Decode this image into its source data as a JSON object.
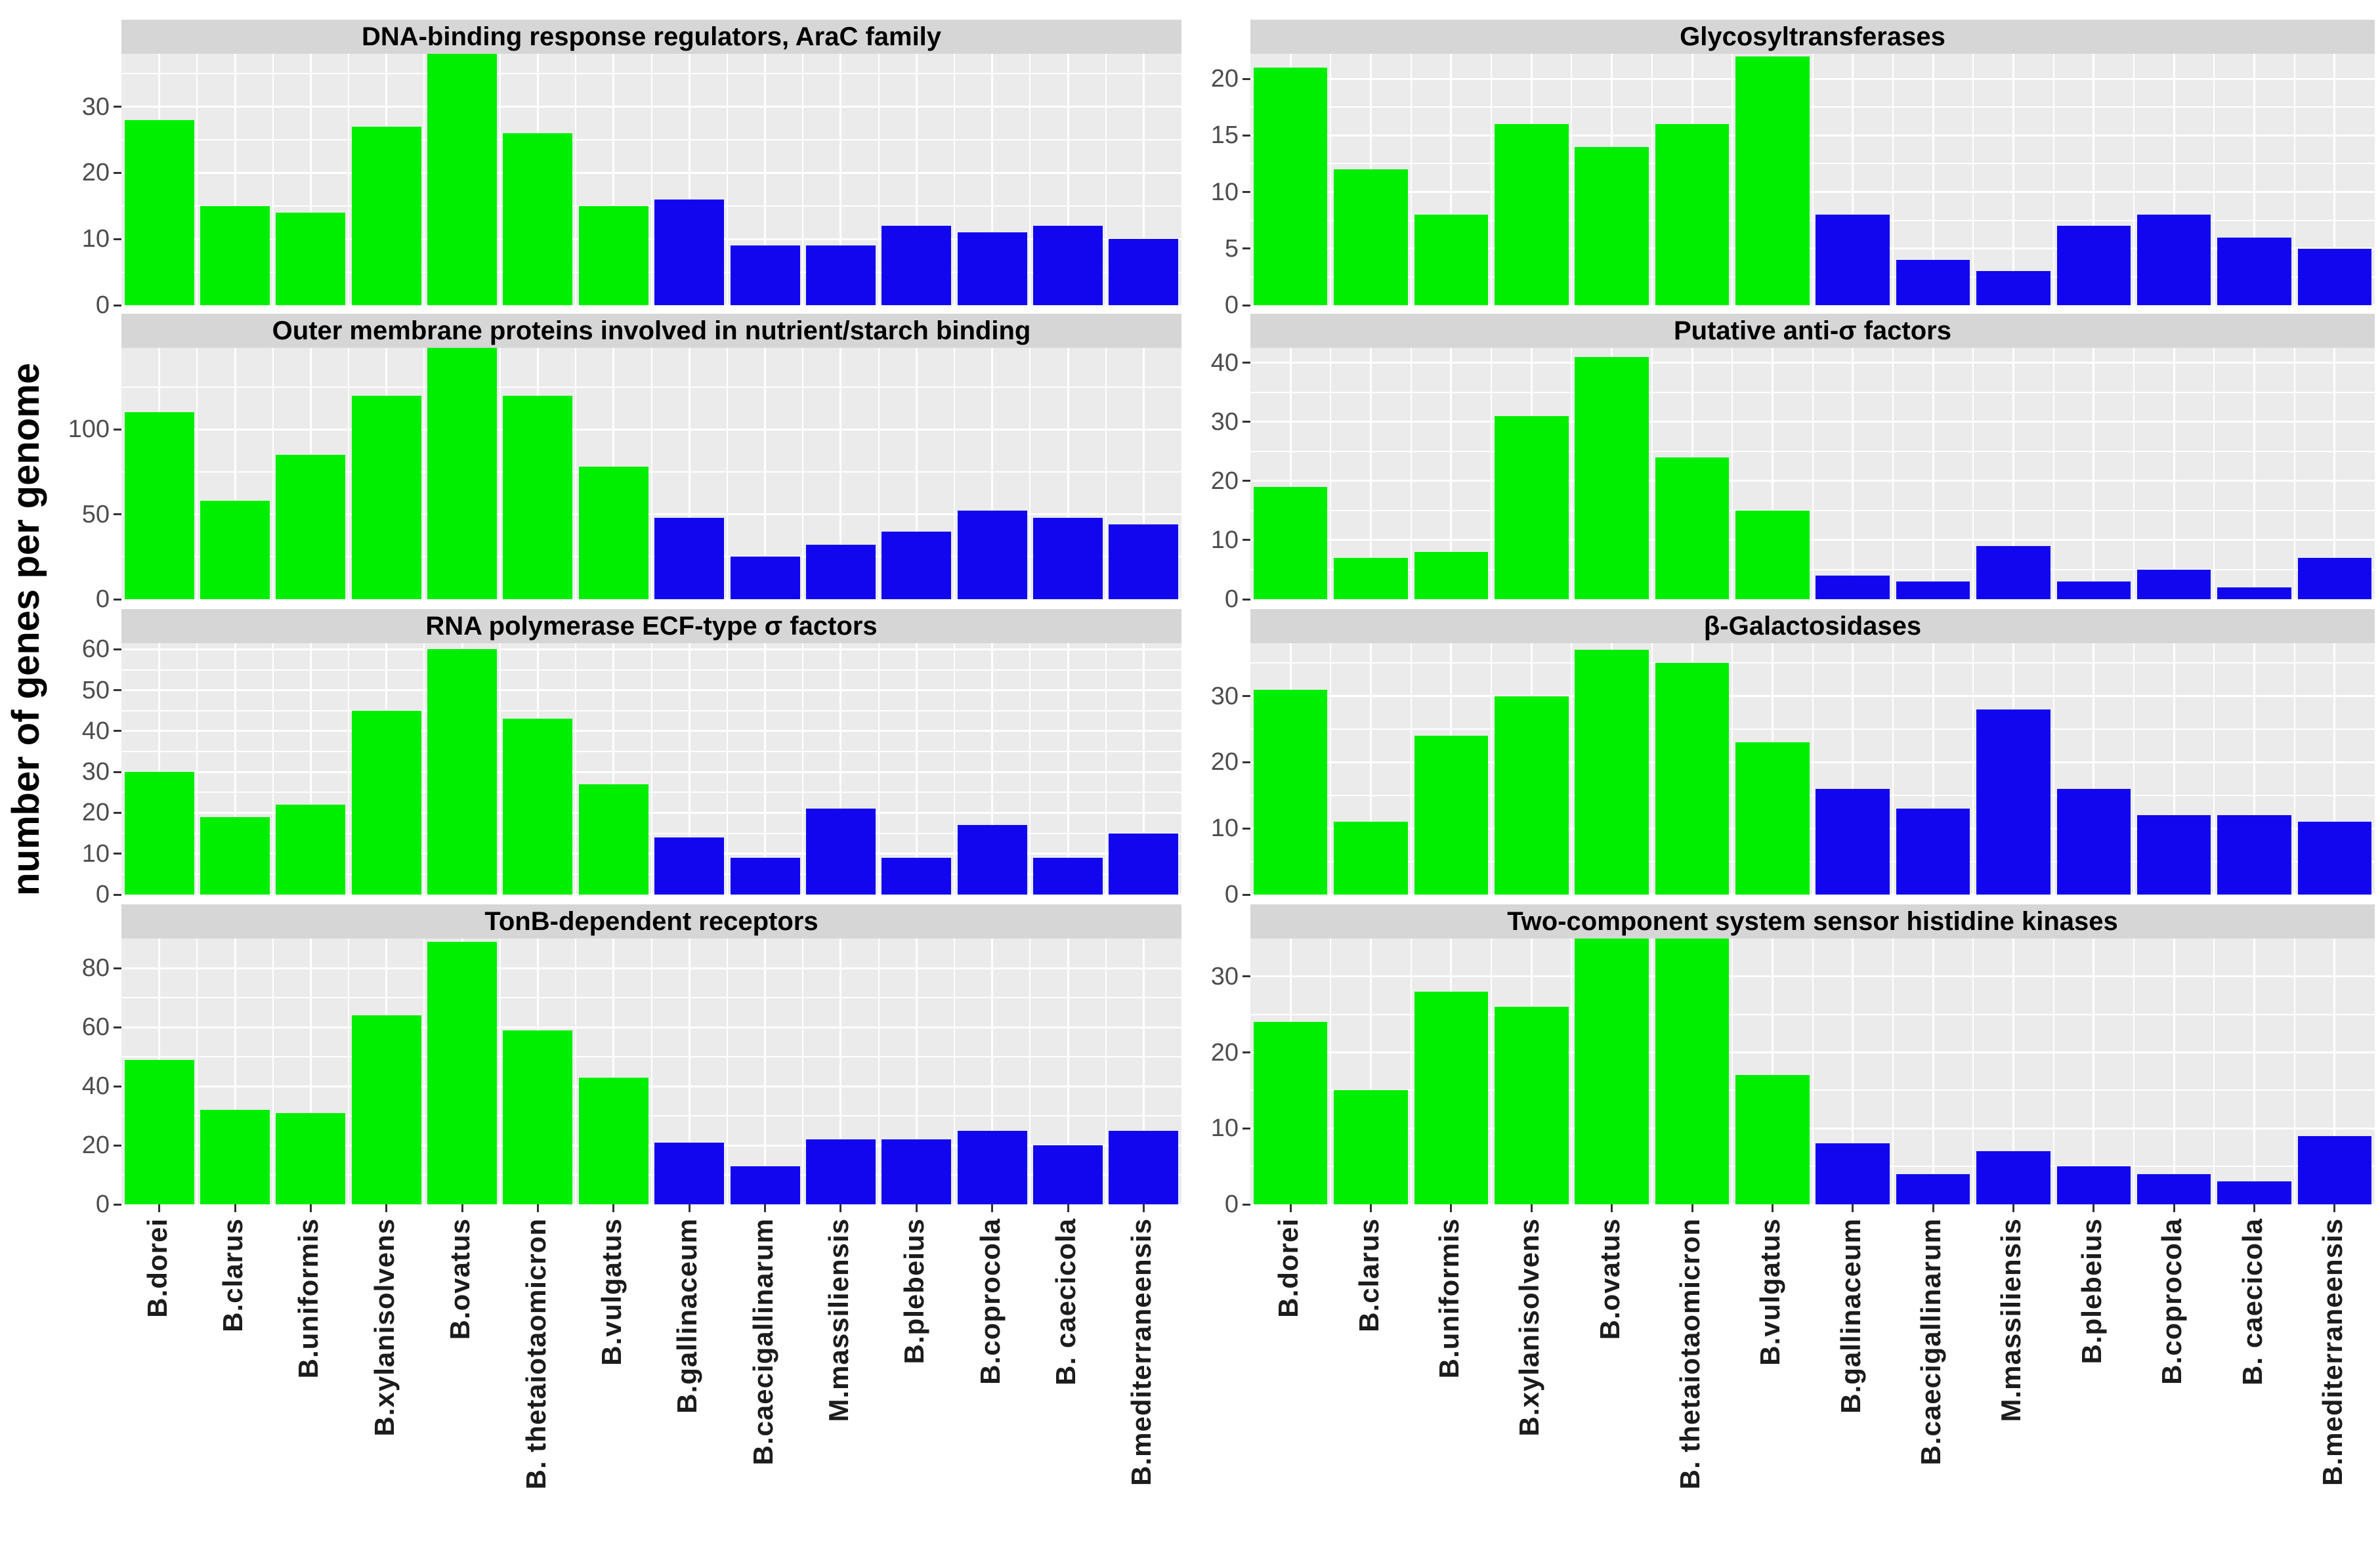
{
  "chart_data": {
    "type": "bar",
    "ylabel": "number of genes per genome",
    "legend_position": "none",
    "grid": "on",
    "group_colors": {
      "first_seven_species": "#00EE00",
      "last_seven_species": "#1106EE"
    },
    "green_count": 7,
    "categories": [
      "B.dorei",
      "B.clarus",
      "B.uniformis",
      "B.xylanisolvens",
      "B.ovatus",
      "B. thetaiotaomicron",
      "B.vulgatus",
      "B.gallinaceum",
      "B.caecigallinarum",
      "M.massiliensis",
      "B.plebeius",
      "B.coprocola",
      "B. caecicola",
      "B.mediterraneensis"
    ],
    "panels": [
      {
        "title": "DNA-binding response regulators, AraC family",
        "row": 0,
        "col": 0,
        "yticks": [
          0,
          10,
          20,
          30
        ],
        "ymax": 38,
        "values": [
          28,
          15,
          14,
          27,
          38,
          26,
          15,
          16,
          9,
          9,
          12,
          11,
          12,
          10
        ]
      },
      {
        "title": "Glycosyltransferases",
        "row": 0,
        "col": 1,
        "yticks": [
          0,
          5,
          10,
          15,
          20
        ],
        "ymax": 22.2,
        "values": [
          21,
          12,
          8,
          16,
          14,
          16,
          22,
          8,
          4,
          3,
          7,
          8,
          6,
          5
        ]
      },
      {
        "title": "Outer membrane proteins involved in nutrient/starch binding",
        "row": 1,
        "col": 0,
        "yticks": [
          0,
          50,
          100
        ],
        "ymax": 148,
        "values": [
          110,
          58,
          85,
          120,
          148,
          120,
          78,
          48,
          25,
          32,
          40,
          52,
          48,
          44
        ]
      },
      {
        "title": "Putative anti-σ factors",
        "row": 1,
        "col": 1,
        "yticks": [
          0,
          10,
          20,
          30,
          40
        ],
        "ymax": 42.5,
        "values": [
          19,
          7,
          8,
          31,
          41,
          24,
          15,
          4,
          3,
          9,
          3,
          5,
          2,
          7
        ]
      },
      {
        "title": "RNA polymerase ECF-type σ factors",
        "row": 2,
        "col": 0,
        "yticks": [
          0,
          10,
          20,
          30,
          40,
          50,
          60
        ],
        "ymax": 61.5,
        "values": [
          30,
          19,
          22,
          45,
          60,
          43,
          27,
          14,
          9,
          21,
          9,
          17,
          9,
          15
        ]
      },
      {
        "title": "β-Galactosidases",
        "row": 2,
        "col": 1,
        "yticks": [
          0,
          10,
          20,
          30
        ],
        "ymax": 38,
        "values": [
          31,
          11,
          24,
          30,
          37,
          35,
          23,
          16,
          13,
          28,
          16,
          12,
          12,
          11
        ]
      },
      {
        "title": "TonB-dependent receptors",
        "row": 3,
        "col": 0,
        "yticks": [
          0,
          20,
          40,
          60,
          80
        ],
        "ymax": 90,
        "values": [
          49,
          32,
          31,
          64,
          89,
          59,
          43,
          21,
          13,
          22,
          22,
          25,
          20,
          25
        ]
      },
      {
        "title": "Two-component system sensor histidine kinases",
        "row": 3,
        "col": 1,
        "yticks": [
          0,
          10,
          20,
          30
        ],
        "ymax": 35,
        "values": [
          24,
          15,
          28,
          26,
          35,
          35,
          17,
          8,
          4,
          7,
          5,
          4,
          3,
          9
        ]
      }
    ]
  }
}
